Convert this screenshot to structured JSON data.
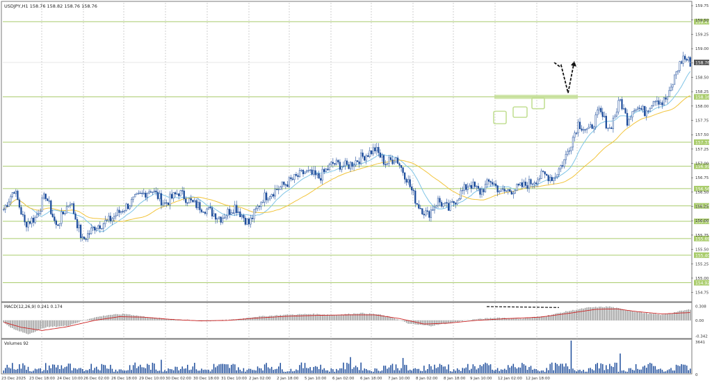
{
  "window": {
    "title": "USDJPY,H1  158.76 158.82 158.76 158.76"
  },
  "indicators": {
    "macd_label": "MACD(12,26,9) 0.241 0.174",
    "volume_label": "Volumes 92"
  },
  "colors": {
    "bull": "#1f4e9c",
    "bear": "#1f4e9c",
    "level_line": "#a9cc6b",
    "ma_fast": "#7fc4e6",
    "ma_slow": "#f2c43a",
    "macd_hist": "#9a9a9a",
    "macd_signal": "#cc2222",
    "volume": "#1f4e9c",
    "grid": "#b0b0b0",
    "level_badge_bg": "#a9cc6b",
    "price_badge_bg": "#e8e8e8",
    "annotation": "#111111",
    "highlight_box": "#c3df95"
  },
  "chart_data": [
    {
      "type": "candlestick",
      "name": "USDJPY,H1",
      "ylim": [
        154.6,
        159.8
      ],
      "current_price": 158.76,
      "y_ticks": [
        "159.75",
        "159.50",
        "159.25",
        "159.00",
        "158.75",
        "158.50",
        "158.25",
        "158.00",
        "157.75",
        "157.50",
        "157.25",
        "157.00",
        "156.75",
        "156.50",
        "156.25",
        "156.00",
        "155.75",
        "155.50",
        "155.25",
        "155.00",
        "154.75"
      ],
      "x_labels": [
        "23 Dec 2025",
        "23 Dec 18:00",
        "24 Dec 10:00",
        "26 Dec 02:00",
        "26 Dec 18:00",
        "29 Dec 10:00",
        "30 Dec 02:00",
        "30 Dec 18:00",
        "31 Dec 10:00",
        "2 Jan 02:00",
        "2 Jan 18:00",
        "5 Jan 10:00",
        "6 Jan 02:00",
        "6 Jan 18:00",
        "7 Jan 10:00",
        "8 Jan 02:00",
        "8 Jan 18:00",
        "9 Jan 10:00",
        "12 Jan 02:00",
        "12 Jan 18:00"
      ],
      "levels": [
        159.47,
        158.16,
        157.37,
        156.95,
        156.56,
        156.26,
        155.99,
        155.69,
        155.4,
        154.92
      ],
      "price_label": "158.76",
      "close_path": [
        [
          0,
          156.2
        ],
        [
          6,
          156.55
        ],
        [
          12,
          155.95
        ],
        [
          18,
          156.05
        ],
        [
          24,
          156.45
        ],
        [
          30,
          155.9
        ],
        [
          38,
          156.35
        ],
        [
          45,
          155.65
        ],
        [
          52,
          155.9
        ],
        [
          60,
          156.0
        ],
        [
          68,
          156.2
        ],
        [
          76,
          156.4
        ],
        [
          84,
          156.55
        ],
        [
          92,
          156.3
        ],
        [
          100,
          156.5
        ],
        [
          108,
          156.3
        ],
        [
          116,
          156.2
        ],
        [
          124,
          156.05
        ],
        [
          132,
          156.25
        ],
        [
          140,
          155.95
        ],
        [
          148,
          156.4
        ],
        [
          156,
          156.55
        ],
        [
          164,
          156.7
        ],
        [
          172,
          156.85
        ],
        [
          180,
          156.75
        ],
        [
          188,
          157.0
        ],
        [
          196,
          156.95
        ],
        [
          204,
          157.1
        ],
        [
          212,
          157.25
        ],
        [
          218,
          157.0
        ],
        [
          224,
          157.1
        ],
        [
          230,
          156.75
        ],
        [
          236,
          156.3
        ],
        [
          242,
          156.1
        ],
        [
          248,
          156.35
        ],
        [
          254,
          156.2
        ],
        [
          260,
          156.45
        ],
        [
          266,
          156.65
        ],
        [
          272,
          156.5
        ],
        [
          278,
          156.7
        ],
        [
          284,
          156.5
        ],
        [
          292,
          156.55
        ],
        [
          300,
          156.65
        ],
        [
          308,
          156.8
        ],
        [
          314,
          156.75
        ],
        [
          320,
          157.05
        ],
        [
          328,
          157.7
        ],
        [
          334,
          157.55
        ],
        [
          340,
          157.9
        ],
        [
          346,
          157.6
        ],
        [
          352,
          158.1
        ],
        [
          356,
          157.75
        ],
        [
          360,
          158.0
        ],
        [
          366,
          157.9
        ],
        [
          372,
          158.15
        ],
        [
          376,
          158.05
        ],
        [
          380,
          158.2
        ],
        [
          384,
          158.6
        ],
        [
          388,
          158.85
        ],
        [
          392,
          158.76
        ]
      ],
      "moving_averages": [
        {
          "name": "ma_fast",
          "color": "#7fc4e6"
        },
        {
          "name": "ma_slow",
          "color": "#f2c43a"
        }
      ]
    },
    {
      "type": "bar",
      "name": "MACD(12,26,9)",
      "ylim": [
        -0.38,
        0.36
      ],
      "y_ticks": [
        "0.308",
        "0.00",
        "-0.342"
      ],
      "histogram_anchor": [
        [
          0,
          -0.05
        ],
        [
          6,
          -0.2
        ],
        [
          14,
          -0.3
        ],
        [
          24,
          -0.15
        ],
        [
          36,
          -0.12
        ],
        [
          50,
          0.05
        ],
        [
          60,
          0.12
        ],
        [
          70,
          0.14
        ],
        [
          84,
          0.06
        ],
        [
          100,
          0.02
        ],
        [
          116,
          -0.02
        ],
        [
          132,
          0.02
        ],
        [
          144,
          0.08
        ],
        [
          160,
          0.12
        ],
        [
          176,
          0.14
        ],
        [
          190,
          0.12
        ],
        [
          204,
          0.16
        ],
        [
          214,
          0.13
        ],
        [
          222,
          0.06
        ],
        [
          232,
          -0.08
        ],
        [
          244,
          -0.12
        ],
        [
          256,
          -0.05
        ],
        [
          268,
          0.02
        ],
        [
          282,
          0.06
        ],
        [
          296,
          0.04
        ],
        [
          310,
          0.1
        ],
        [
          322,
          0.2
        ],
        [
          334,
          0.28
        ],
        [
          346,
          0.3
        ],
        [
          356,
          0.22
        ],
        [
          366,
          0.16
        ],
        [
          376,
          0.12
        ],
        [
          386,
          0.2
        ],
        [
          392,
          0.24
        ]
      ],
      "signal_anchor": [
        [
          0,
          -0.04
        ],
        [
          10,
          -0.15
        ],
        [
          22,
          -0.22
        ],
        [
          36,
          -0.14
        ],
        [
          52,
          0.0
        ],
        [
          66,
          0.08
        ],
        [
          80,
          0.07
        ],
        [
          96,
          0.02
        ],
        [
          112,
          -0.01
        ],
        [
          128,
          0.0
        ],
        [
          144,
          0.05
        ],
        [
          162,
          0.09
        ],
        [
          180,
          0.11
        ],
        [
          198,
          0.12
        ],
        [
          212,
          0.12
        ],
        [
          226,
          0.04
        ],
        [
          240,
          -0.08
        ],
        [
          254,
          -0.06
        ],
        [
          270,
          0.0
        ],
        [
          288,
          0.04
        ],
        [
          306,
          0.07
        ],
        [
          322,
          0.15
        ],
        [
          338,
          0.24
        ],
        [
          350,
          0.25
        ],
        [
          362,
          0.19
        ],
        [
          376,
          0.14
        ],
        [
          386,
          0.16
        ],
        [
          392,
          0.17
        ]
      ]
    },
    {
      "type": "bar",
      "name": "Volumes",
      "ylim": [
        0,
        3641
      ],
      "y_ticks": [
        "3641",
        "0"
      ],
      "volume_spikes": [
        [
          324,
          3641
        ],
        [
          352,
          2200
        ],
        [
          198,
          1800
        ],
        [
          90,
          1500
        ],
        [
          228,
          1700
        ]
      ]
    }
  ]
}
